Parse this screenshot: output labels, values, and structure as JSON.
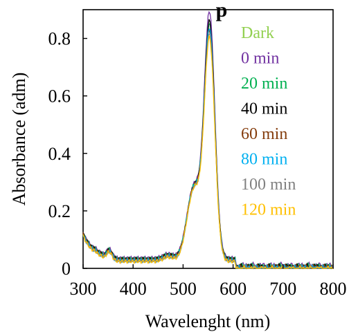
{
  "chart_data": {
    "type": "line",
    "title": "p",
    "xlabel": "Wavelenght (nm)",
    "ylabel": "Absorbance (adm)",
    "xlim": [
      300,
      800
    ],
    "ylim": [
      0,
      0.9
    ],
    "xticks": [
      300,
      400,
      500,
      600,
      700,
      800
    ],
    "yticks": [
      0,
      0.2,
      0.4,
      0.6,
      0.8
    ],
    "ytick_labels": [
      "0",
      "0.2",
      "0.4",
      "0.6",
      "0.8"
    ],
    "grid": false,
    "legend_position": "top-right",
    "peak_x": 553,
    "series": [
      {
        "name": "Dark",
        "color": "#92d050",
        "peak": 0.8,
        "offset": 0.0
      },
      {
        "name": "0 min",
        "color": "#7030a0",
        "peak": 0.86,
        "offset": 0.006
      },
      {
        "name": "20 min",
        "color": "#00b050",
        "peak": 0.82,
        "offset": 0.003
      },
      {
        "name": "40 min",
        "color": "#000000",
        "peak": 0.83,
        "offset": 0.002
      },
      {
        "name": "60 min",
        "color": "#843c0c",
        "peak": 0.8,
        "offset": 0.0
      },
      {
        "name": "80 min",
        "color": "#00b0f0",
        "peak": 0.81,
        "offset": -0.002
      },
      {
        "name": "100 min",
        "color": "#808080",
        "peak": 0.79,
        "offset": -0.004
      },
      {
        "name": "120 min",
        "color": "#ffc000",
        "peak": 0.78,
        "offset": -0.006
      }
    ]
  }
}
